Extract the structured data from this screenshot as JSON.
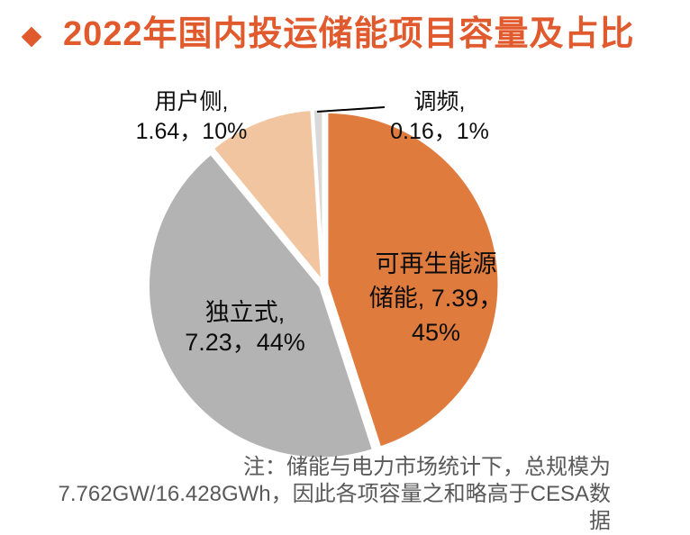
{
  "header": {
    "title": "2022年国内投运储能项目容量及占比",
    "accent_color": "#E15A2D",
    "bullet_icon": "diamond"
  },
  "chart_data": {
    "type": "pie",
    "title": "2022年国内投运储能项目容量及占比",
    "legend_position": "none",
    "start_angle": "12 o'clock, clockwise",
    "slice_gap_color": "#FFFFFF",
    "series": [
      {
        "name": "可再生能源储能",
        "value": 7.39,
        "percent": 45,
        "color": "#DF7B3D"
      },
      {
        "name": "独立式",
        "value": 7.23,
        "percent": 44,
        "color": "#B3B3B3"
      },
      {
        "name": "用户侧",
        "value": 1.64,
        "percent": 10,
        "color": "#F1C59F"
      },
      {
        "name": "调频",
        "value": 0.16,
        "percent": 1,
        "color": "#D9D9D9"
      }
    ]
  },
  "labels": {
    "renewable": {
      "line1": "可再生能源",
      "line2": "储能, 7.39，",
      "line3": "45%"
    },
    "standalone": {
      "line1": "独立式,",
      "line2": "7.23，44%"
    },
    "user_side": {
      "line1": "用户侧,",
      "line2": "1.64，10%"
    },
    "frequency": {
      "line1": "调频,",
      "line2": "0.16，1%"
    }
  },
  "note": {
    "line1": "注：储能与电力市场统计下，总规模为",
    "line2": "7.762GW/16.428GWh，因此各项容量之和略高于CESA数据",
    "color": "#595959"
  }
}
